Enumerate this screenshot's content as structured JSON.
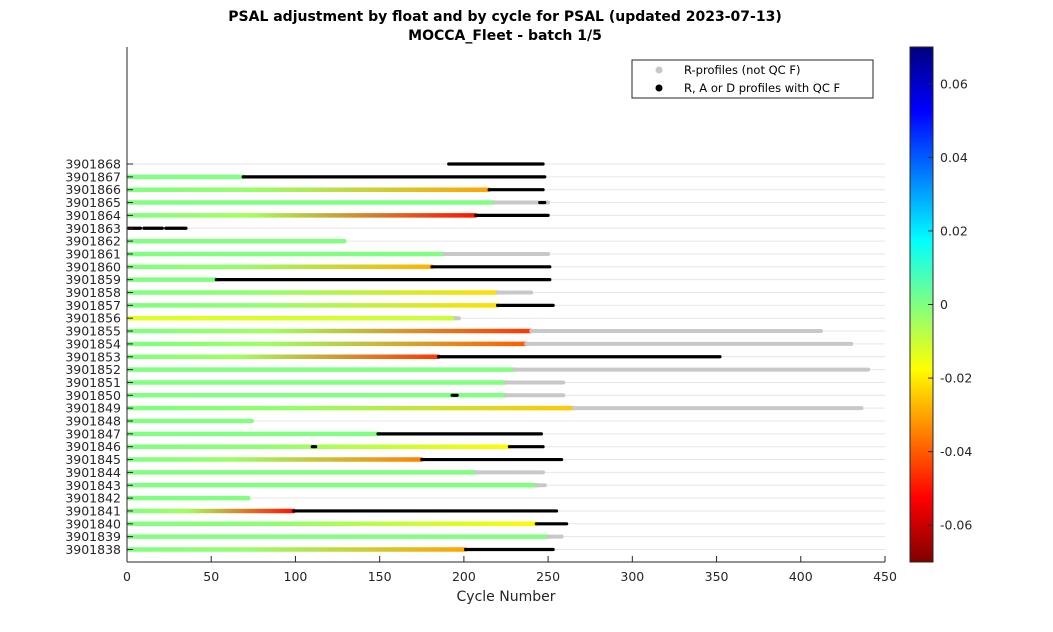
{
  "chart_data": {
    "type": "bar",
    "title": "PSAL adjustment by float and by cycle for PSAL (updated 2023-07-13)",
    "subtitle": "MOCCA_Fleet - batch 1/5",
    "xlabel": "Cycle Number",
    "ylabel": "",
    "xlim": [
      0,
      450
    ],
    "xticks": [
      0,
      50,
      100,
      150,
      200,
      250,
      300,
      350,
      400,
      450
    ],
    "legend": {
      "position": "top-right",
      "entries": [
        "R-profiles (not QC F)",
        "R, A or D profiles with QC F"
      ]
    },
    "colorbar": {
      "range": [
        -0.07,
        0.07
      ],
      "ticks": [
        0.06,
        0.04,
        0.02,
        0,
        -0.02,
        -0.04,
        -0.06
      ],
      "tick_labels": [
        "0.06",
        "0.04",
        "0.02",
        "0",
        "-0.02",
        "-0.04",
        "-0.06"
      ],
      "colormap": "jet"
    },
    "floats": [
      {
        "id": "3901868",
        "segments": [
          {
            "from": 191,
            "to": 247,
            "kind": "qcf"
          }
        ]
      },
      {
        "id": "3901867",
        "segments": [
          {
            "from": 1,
            "to": 69,
            "kind": "adj",
            "v0": 0.0,
            "v1": 0.0
          },
          {
            "from": 69,
            "to": 248,
            "kind": "qcf"
          }
        ]
      },
      {
        "id": "3901866",
        "segments": [
          {
            "from": 1,
            "to": 215,
            "kind": "adj",
            "v0": 0.0,
            "v1": -0.03
          },
          {
            "from": 215,
            "to": 247,
            "kind": "qcf"
          }
        ]
      },
      {
        "id": "3901865",
        "segments": [
          {
            "from": 1,
            "to": 218,
            "kind": "adj",
            "v0": 0.0,
            "v1": 0.0
          },
          {
            "from": 218,
            "to": 250,
            "kind": "r"
          },
          {
            "from": 245,
            "to": 248,
            "kind": "qcf"
          }
        ]
      },
      {
        "id": "3901864",
        "segments": [
          {
            "from": 1,
            "to": 207,
            "kind": "adj",
            "v0": 0.0,
            "v1": -0.05
          },
          {
            "from": 207,
            "to": 250,
            "kind": "qcf"
          }
        ]
      },
      {
        "id": "3901863",
        "segments": [
          {
            "from": 1,
            "to": 8,
            "kind": "qcf"
          },
          {
            "from": 10,
            "to": 21,
            "kind": "qcf"
          },
          {
            "from": 23,
            "to": 35,
            "kind": "qcf"
          }
        ]
      },
      {
        "id": "3901862",
        "segments": [
          {
            "from": 1,
            "to": 129,
            "kind": "adj",
            "v0": 0.0,
            "v1": 0.0
          }
        ]
      },
      {
        "id": "3901861",
        "segments": [
          {
            "from": 1,
            "to": 188,
            "kind": "adj",
            "v0": 0.0,
            "v1": 0.0
          },
          {
            "from": 188,
            "to": 250,
            "kind": "r"
          }
        ]
      },
      {
        "id": "3901860",
        "segments": [
          {
            "from": 1,
            "to": 181,
            "kind": "adj",
            "v0": 0.0,
            "v1": -0.028
          },
          {
            "from": 181,
            "to": 251,
            "kind": "qcf"
          }
        ]
      },
      {
        "id": "3901859",
        "segments": [
          {
            "from": 1,
            "to": 53,
            "kind": "adj",
            "v0": 0.0,
            "v1": 0.0
          },
          {
            "from": 53,
            "to": 251,
            "kind": "qcf"
          }
        ]
      },
      {
        "id": "3901858",
        "segments": [
          {
            "from": 1,
            "to": 220,
            "kind": "adj",
            "v0": 0.0,
            "v1": -0.022
          },
          {
            "from": 220,
            "to": 240,
            "kind": "r"
          }
        ]
      },
      {
        "id": "3901857",
        "segments": [
          {
            "from": 1,
            "to": 220,
            "kind": "adj",
            "v0": 0.0,
            "v1": -0.022
          },
          {
            "from": 220,
            "to": 253,
            "kind": "qcf"
          }
        ]
      },
      {
        "id": "3901856",
        "segments": [
          {
            "from": 1,
            "to": 195,
            "kind": "adj",
            "v0": -0.013,
            "v1": -0.01
          },
          {
            "from": 195,
            "to": 197,
            "kind": "r"
          }
        ]
      },
      {
        "id": "3901855",
        "segments": [
          {
            "from": 1,
            "to": 240,
            "kind": "adj",
            "v0": 0.0,
            "v1": -0.045
          },
          {
            "from": 240,
            "to": 412,
            "kind": "r"
          }
        ]
      },
      {
        "id": "3901854",
        "segments": [
          {
            "from": 1,
            "to": 237,
            "kind": "adj",
            "v0": 0.0,
            "v1": -0.04
          },
          {
            "from": 237,
            "to": 430,
            "kind": "r"
          }
        ]
      },
      {
        "id": "3901853",
        "segments": [
          {
            "from": 1,
            "to": 185,
            "kind": "adj",
            "v0": 0.0,
            "v1": -0.045
          },
          {
            "from": 185,
            "to": 352,
            "kind": "qcf"
          }
        ]
      },
      {
        "id": "3901852",
        "segments": [
          {
            "from": 1,
            "to": 230,
            "kind": "adj",
            "v0": 0.0,
            "v1": 0.0
          },
          {
            "from": 230,
            "to": 440,
            "kind": "r"
          }
        ]
      },
      {
        "id": "3901851",
        "segments": [
          {
            "from": 1,
            "to": 225,
            "kind": "adj",
            "v0": 0.0,
            "v1": 0.0
          },
          {
            "from": 225,
            "to": 259,
            "kind": "r"
          }
        ]
      },
      {
        "id": "3901850",
        "segments": [
          {
            "from": 1,
            "to": 225,
            "kind": "adj",
            "v0": 0.0,
            "v1": 0.0
          },
          {
            "from": 225,
            "to": 259,
            "kind": "r"
          },
          {
            "from": 193,
            "to": 196,
            "kind": "qcf"
          }
        ]
      },
      {
        "id": "3901849",
        "segments": [
          {
            "from": 1,
            "to": 265,
            "kind": "adj",
            "v0": 0.0,
            "v1": -0.025
          },
          {
            "from": 265,
            "to": 436,
            "kind": "r"
          }
        ]
      },
      {
        "id": "3901848",
        "segments": [
          {
            "from": 1,
            "to": 74,
            "kind": "adj",
            "v0": 0.0,
            "v1": 0.0
          }
        ]
      },
      {
        "id": "3901847",
        "segments": [
          {
            "from": 1,
            "to": 149,
            "kind": "adj",
            "v0": 0.0,
            "v1": 0.0
          },
          {
            "from": 149,
            "to": 246,
            "kind": "qcf"
          }
        ]
      },
      {
        "id": "3901846",
        "segments": [
          {
            "from": 1,
            "to": 227,
            "kind": "adj",
            "v0": 0.0,
            "v1": -0.018
          },
          {
            "from": 227,
            "to": 247,
            "kind": "qcf"
          },
          {
            "from": 110,
            "to": 112,
            "kind": "qcf"
          }
        ]
      },
      {
        "id": "3901845",
        "segments": [
          {
            "from": 1,
            "to": 175,
            "kind": "adj",
            "v0": 0.0,
            "v1": -0.035
          },
          {
            "from": 175,
            "to": 258,
            "kind": "qcf"
          }
        ]
      },
      {
        "id": "3901844",
        "segments": [
          {
            "from": 1,
            "to": 207,
            "kind": "adj",
            "v0": 0.0,
            "v1": 0.0
          },
          {
            "from": 207,
            "to": 247,
            "kind": "r"
          }
        ]
      },
      {
        "id": "3901843",
        "segments": [
          {
            "from": 1,
            "to": 243,
            "kind": "adj",
            "v0": 0.0,
            "v1": 0.0
          },
          {
            "from": 243,
            "to": 248,
            "kind": "r"
          }
        ]
      },
      {
        "id": "3901842",
        "segments": [
          {
            "from": 1,
            "to": 72,
            "kind": "adj",
            "v0": 0.0,
            "v1": 0.0
          }
        ]
      },
      {
        "id": "3901841",
        "segments": [
          {
            "from": 1,
            "to": 99,
            "kind": "adj",
            "v0": 0.0,
            "v1": -0.05
          },
          {
            "from": 99,
            "to": 255,
            "kind": "qcf"
          }
        ]
      },
      {
        "id": "3901840",
        "segments": [
          {
            "from": 1,
            "to": 243,
            "kind": "adj",
            "v0": 0.0,
            "v1": -0.018
          },
          {
            "from": 243,
            "to": 261,
            "kind": "qcf"
          }
        ]
      },
      {
        "id": "3901839",
        "segments": [
          {
            "from": 1,
            "to": 250,
            "kind": "adj",
            "v0": 0.0,
            "v1": 0.0
          },
          {
            "from": 250,
            "to": 258,
            "kind": "r"
          }
        ]
      },
      {
        "id": "3901838",
        "segments": [
          {
            "from": 1,
            "to": 201,
            "kind": "adj",
            "v0": 0.0,
            "v1": -0.03
          },
          {
            "from": 201,
            "to": 253,
            "kind": "qcf"
          }
        ]
      }
    ]
  }
}
